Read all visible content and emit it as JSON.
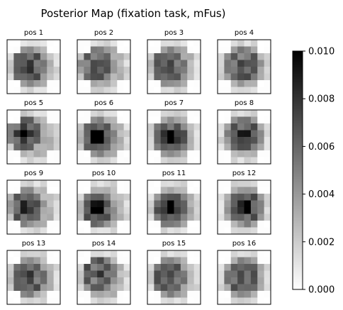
{
  "chart_data": {
    "type": "heatmap",
    "title": "Posterior Map (fixation task, mFus)",
    "colormap": "gray_r",
    "vmin": 0.0,
    "vmax": 0.01,
    "colorbar_ticks": [
      "0.000",
      "0.002",
      "0.004",
      "0.006",
      "0.008",
      "0.010"
    ],
    "colorbar_tick_values": [
      0.0,
      0.002,
      0.004,
      0.006,
      0.008,
      0.01
    ],
    "panels": [
      {
        "title": "pos 1",
        "peak": 0.0065,
        "center": [
          2.7,
          3.5
        ]
      },
      {
        "title": "pos 2",
        "peak": 0.0055,
        "center": [
          2.3,
          3.3
        ]
      },
      {
        "title": "pos 3",
        "peak": 0.006,
        "center": [
          2.7,
          3.5
        ]
      },
      {
        "title": "pos 4",
        "peak": 0.0055,
        "center": [
          3.3,
          3.3
        ]
      },
      {
        "title": "pos 5",
        "peak": 0.0095,
        "center": [
          2.0,
          3.0
        ]
      },
      {
        "title": "pos 6",
        "peak": 0.011,
        "center": [
          2.5,
          3.5
        ]
      },
      {
        "title": "pos 7",
        "peak": 0.011,
        "center": [
          3.0,
          3.5
        ]
      },
      {
        "title": "pos 8",
        "peak": 0.0075,
        "center": [
          3.5,
          3.2
        ]
      },
      {
        "title": "pos 9",
        "peak": 0.007,
        "center": [
          2.3,
          3.5
        ]
      },
      {
        "title": "pos 10",
        "peak": 0.011,
        "center": [
          2.5,
          3.8
        ]
      },
      {
        "title": "pos 11",
        "peak": 0.0105,
        "center": [
          3.0,
          3.7
        ]
      },
      {
        "title": "pos 12",
        "peak": 0.0085,
        "center": [
          3.7,
          3.5
        ]
      },
      {
        "title": "pos 13",
        "peak": 0.006,
        "center": [
          2.7,
          3.5
        ]
      },
      {
        "title": "pos 14",
        "peak": 0.0055,
        "center": [
          2.7,
          3.0
        ]
      },
      {
        "title": "pos 15",
        "peak": 0.0055,
        "center": [
          2.7,
          3.5
        ]
      },
      {
        "title": "pos 16",
        "peak": 0.005,
        "center": [
          3.3,
          3.5
        ]
      }
    ]
  }
}
